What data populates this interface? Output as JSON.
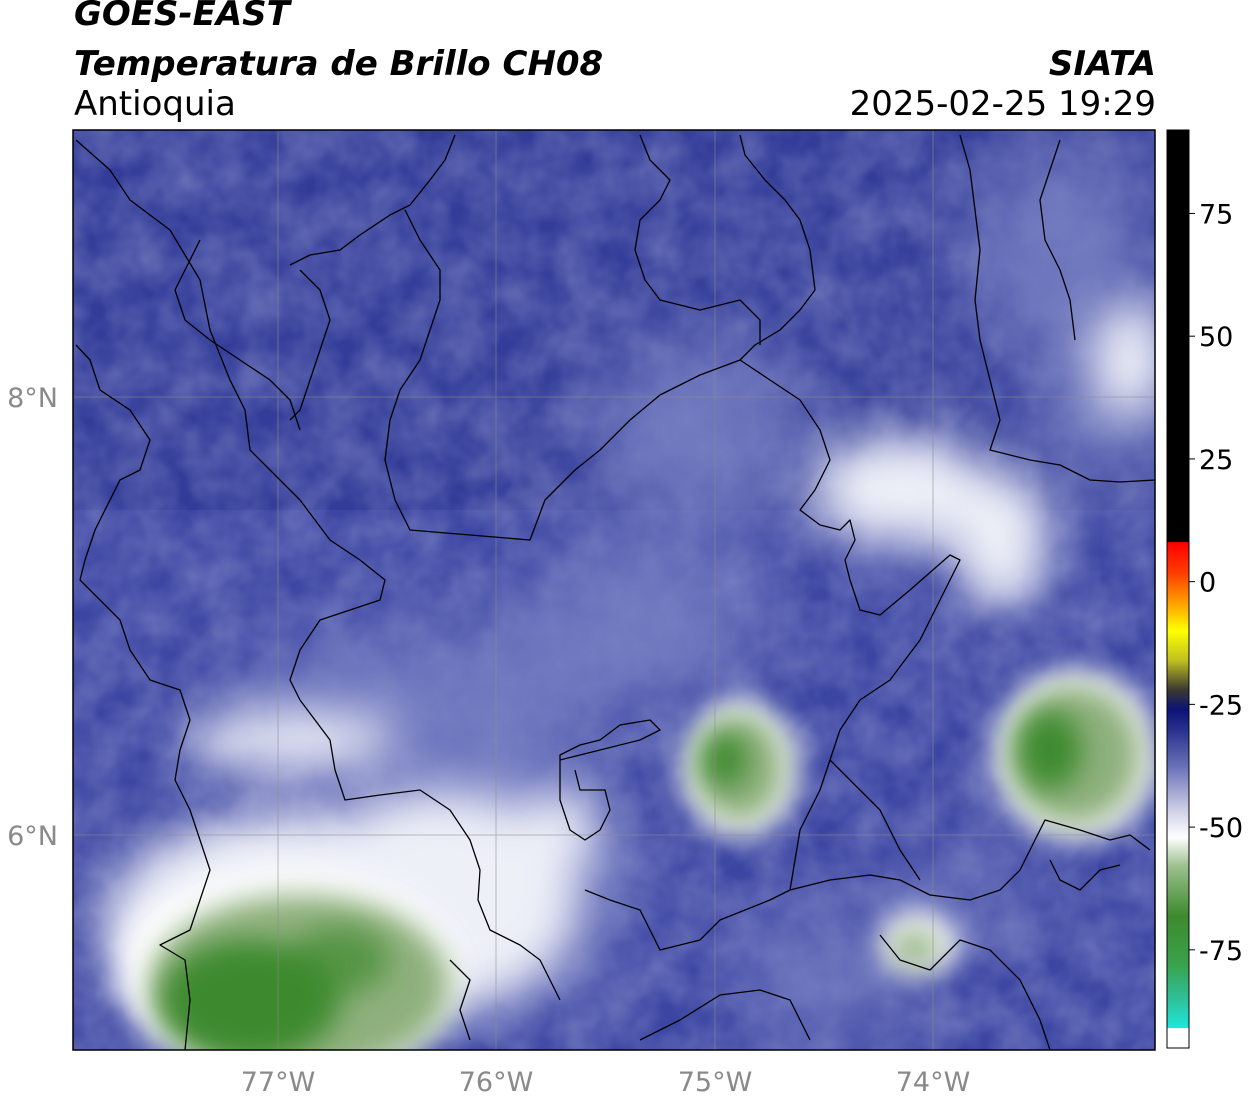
{
  "header": {
    "satellite": "GOES-EAST",
    "product": "Temperatura de Brillo CH08",
    "region": "Antioquia",
    "organization": "SIATA",
    "datetime": "2025-02-25 19:29"
  },
  "map": {
    "lon_range": [
      -77.95,
      -72.95
    ],
    "lat_range": [
      5.35,
      9.55
    ],
    "lon_ticks": [
      {
        "value": -77,
        "label": "77°W"
      },
      {
        "value": -76,
        "label": "76°W"
      },
      {
        "value": -75,
        "label": "75°W"
      },
      {
        "value": -74,
        "label": "74°W"
      }
    ],
    "lat_ticks": [
      {
        "value": 8,
        "label": "8°N"
      },
      {
        "value": 6,
        "label": "6°N"
      }
    ],
    "grid": true,
    "colors": {
      "background_cloudfree": "#3a44a0",
      "cold_cloud_white": "#f2f3f8",
      "very_cold_green": "#3f8a35"
    }
  },
  "colorbar": {
    "range": [
      -95,
      92
    ],
    "tick_labels": [
      {
        "value": 75,
        "label": "75"
      },
      {
        "value": 50,
        "label": "50"
      },
      {
        "value": 25,
        "label": "25"
      },
      {
        "value": 0,
        "label": "0"
      },
      {
        "value": -25,
        "label": "-25"
      },
      {
        "value": -50,
        "label": "-50"
      },
      {
        "value": -75,
        "label": "-75"
      }
    ],
    "stops": [
      {
        "value": -95,
        "color": "#ffffff"
      },
      {
        "value": -91,
        "color": "#ffffff"
      },
      {
        "value": -90.9,
        "color": "#1ce8d8"
      },
      {
        "value": -85,
        "color": "#2fc09a"
      },
      {
        "value": -78,
        "color": "#39a24c"
      },
      {
        "value": -68,
        "color": "#3e8a2e"
      },
      {
        "value": -58,
        "color": "#9cc08e"
      },
      {
        "value": -52,
        "color": "#ffffff"
      },
      {
        "value": -46,
        "color": "#c8cae4"
      },
      {
        "value": -38,
        "color": "#6c74ba"
      },
      {
        "value": -30,
        "color": "#26308c"
      },
      {
        "value": -26,
        "color": "#0b1275"
      },
      {
        "value": -22,
        "color": "#3a3a30"
      },
      {
        "value": -16,
        "color": "#c0c020"
      },
      {
        "value": -10,
        "color": "#ffff00"
      },
      {
        "value": -4,
        "color": "#ff9a00"
      },
      {
        "value": 2,
        "color": "#ff3a00"
      },
      {
        "value": 8,
        "color": "#ff0000"
      },
      {
        "value": 8.1,
        "color": "#000000"
      },
      {
        "value": 92,
        "color": "#000000"
      }
    ]
  }
}
